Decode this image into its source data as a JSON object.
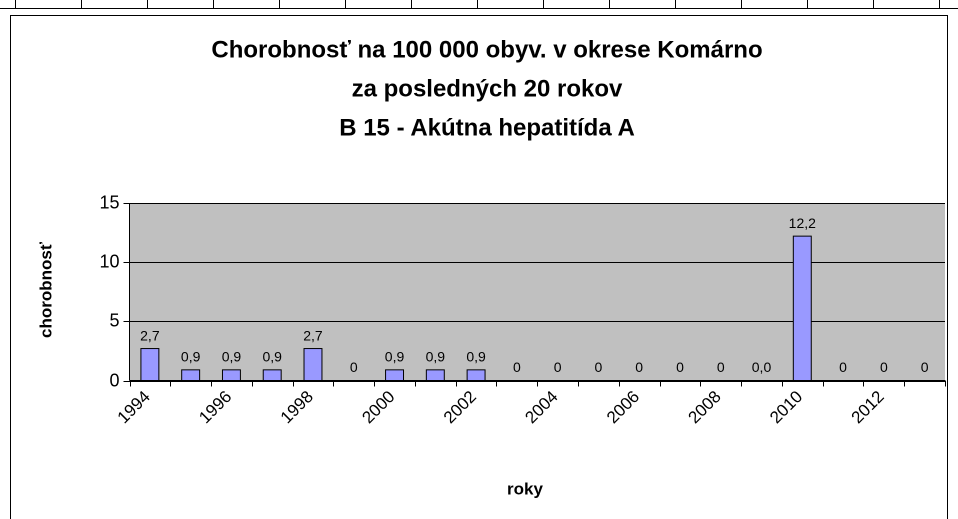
{
  "chart_data": {
    "type": "bar",
    "title": [
      "Chorobnosť na 100 000 obyv. v okrese Komárno",
      "za posledných 20 rokov",
      "B 15 - Akútna hepatitída A"
    ],
    "x_label": "roky",
    "y_label": "chorobnosť",
    "categories": [
      "1994",
      null,
      "1996",
      null,
      "1998",
      null,
      "2000",
      null,
      "2002",
      null,
      "2004",
      null,
      "2006",
      null,
      "2008",
      null,
      "2010",
      null,
      "2012",
      null
    ],
    "values": [
      2.7,
      0.9,
      0.9,
      0.9,
      2.7,
      0,
      0.9,
      0.9,
      0.9,
      0,
      0,
      0,
      0,
      0,
      0,
      0.0,
      12.2,
      0,
      0,
      0
    ],
    "value_labels": [
      "2,7",
      "0,9",
      "0,9",
      "0,9",
      "2,7",
      "0",
      "0,9",
      "0,9",
      "0,9",
      "0",
      "0",
      "0",
      "0",
      "0",
      "0",
      "0,0",
      "12,2",
      "0",
      "0",
      "0"
    ],
    "color": "#9999ff",
    "background": "#c0c0c0",
    "ylim": [
      0,
      15
    ],
    "yticks": [
      0,
      5,
      10,
      15
    ],
    "grid": true
  }
}
